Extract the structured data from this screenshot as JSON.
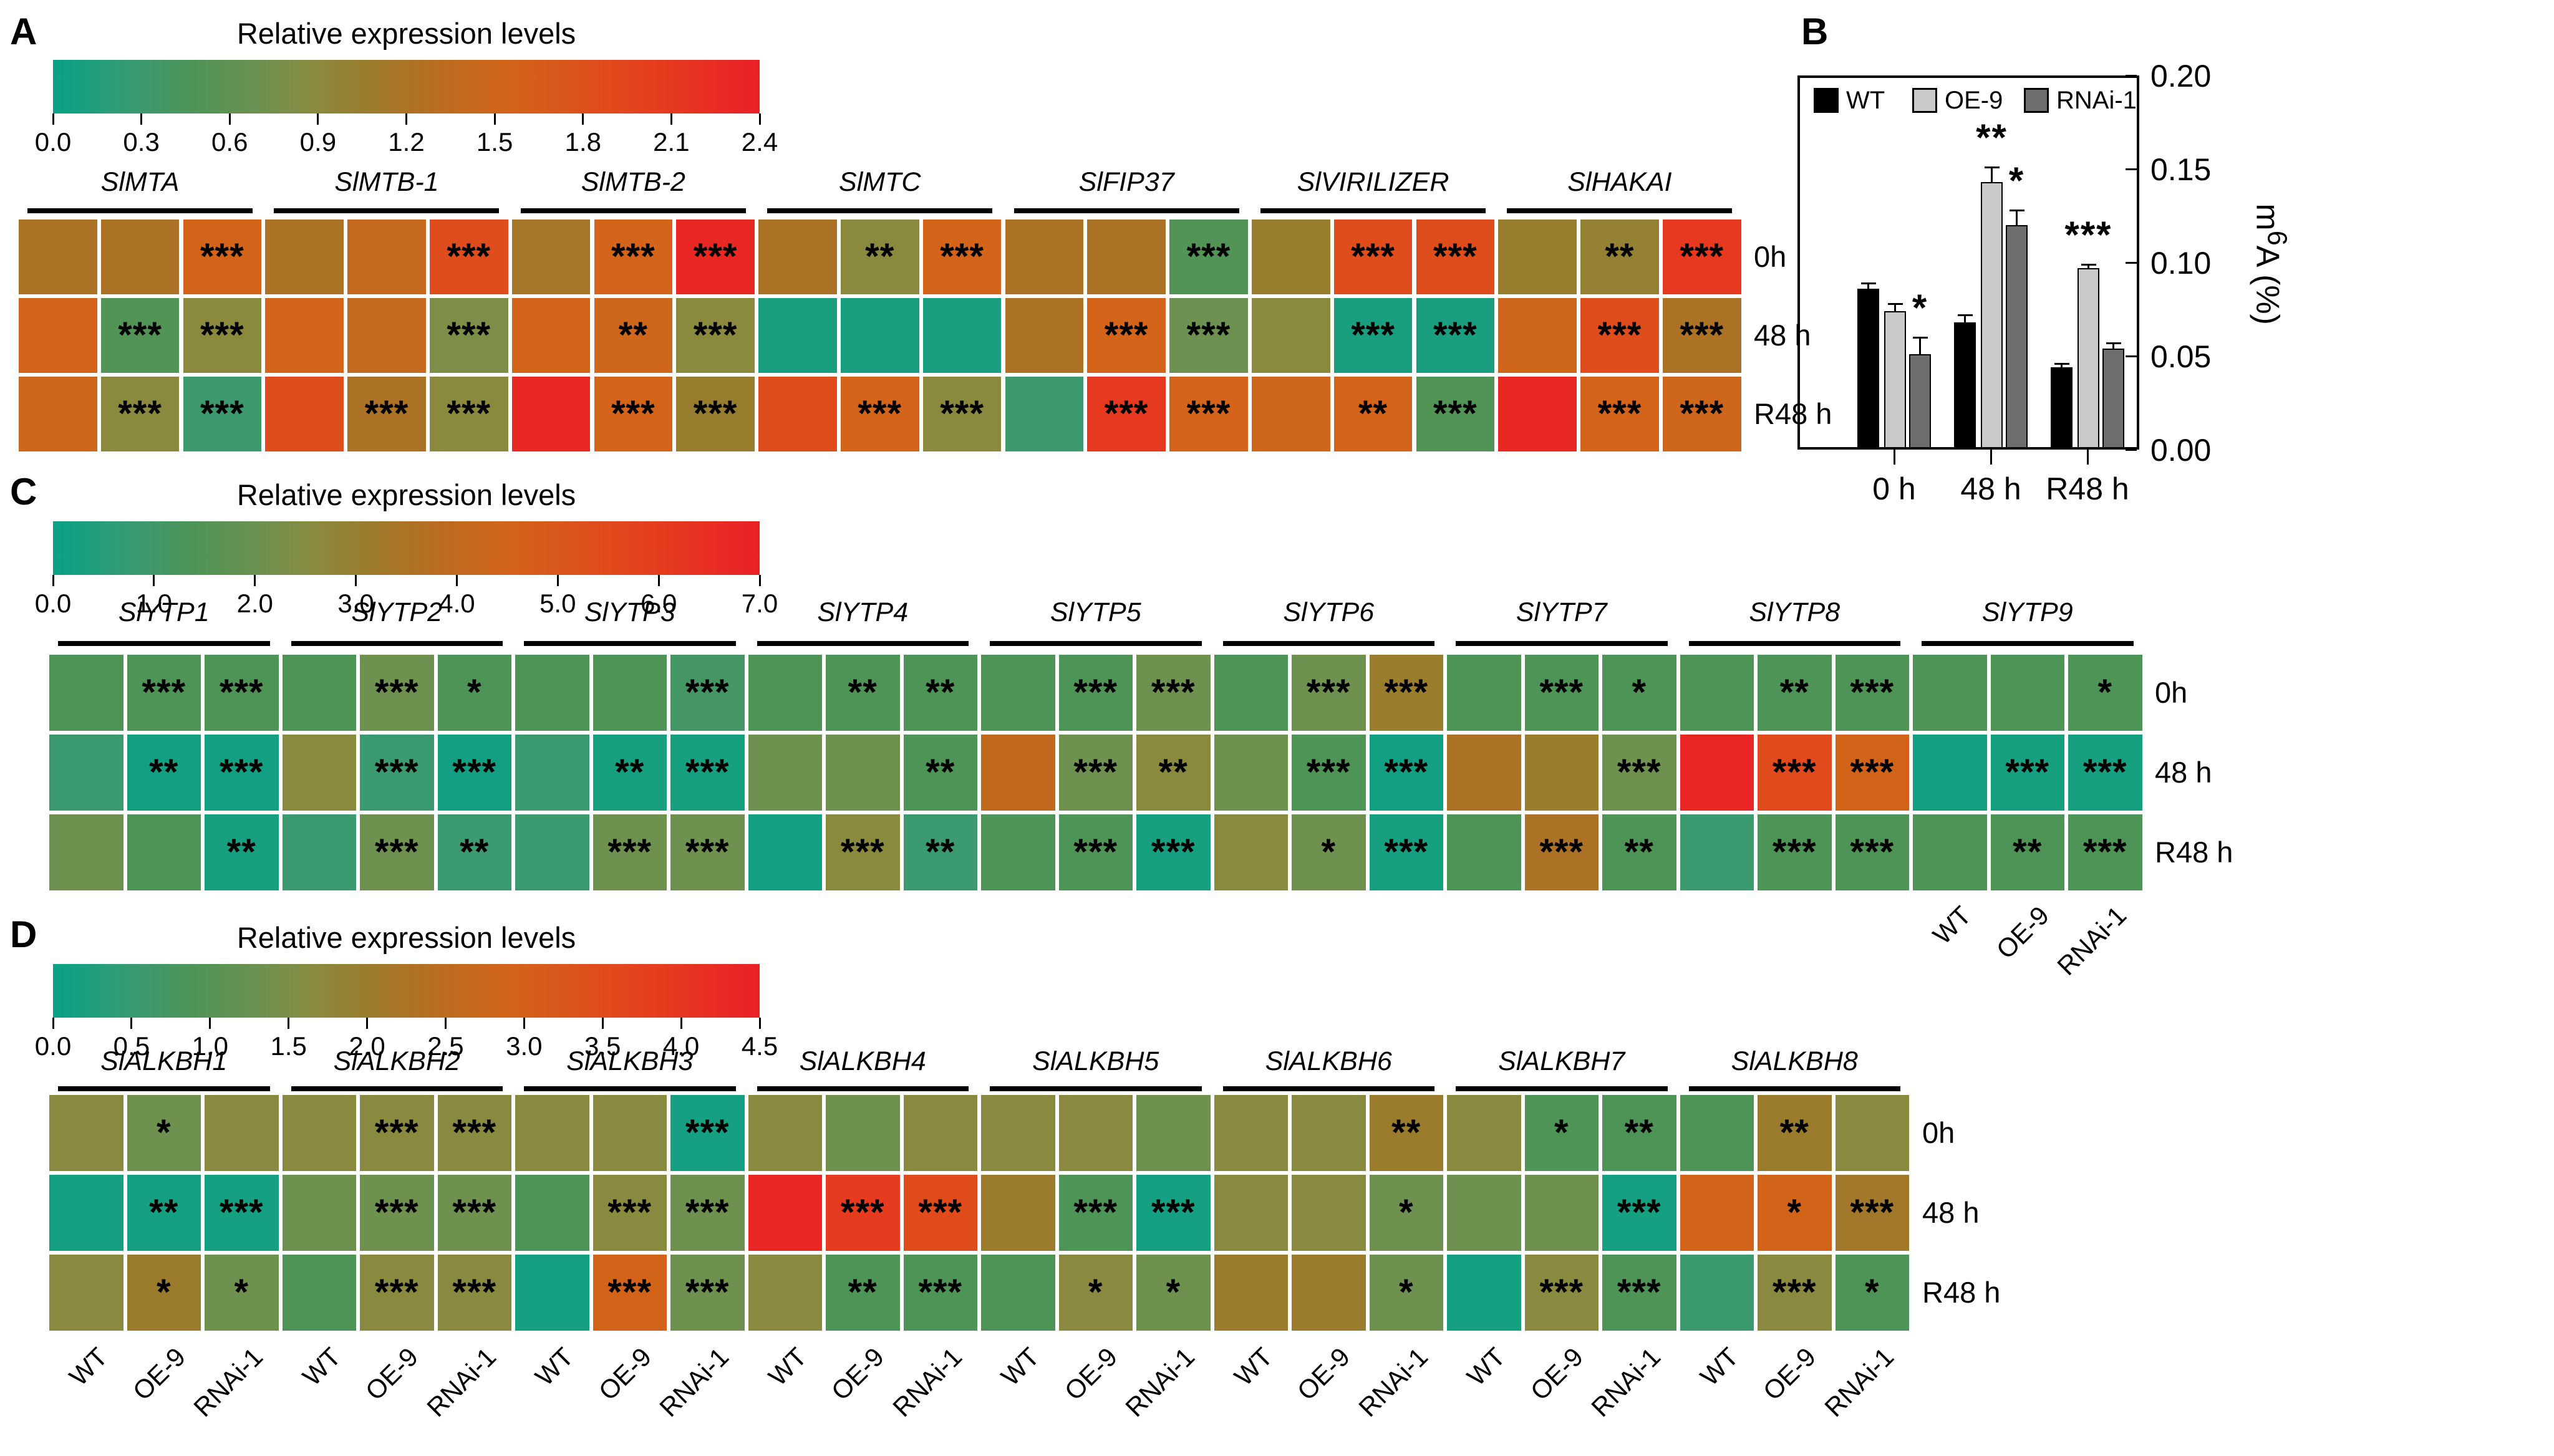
{
  "chart_data": [
    {
      "id": "A",
      "type": "heatmap",
      "panel_letter": "A",
      "title": "Relative expression levels",
      "colorbar_ticks": [
        "0.0",
        "0.3",
        "0.6",
        "0.9",
        "1.2",
        "1.5",
        "1.8",
        "2.1",
        "2.4"
      ],
      "scale_min": 0.0,
      "scale_max": 2.4,
      "genes": [
        "SlMTA",
        "SlMTB-1",
        "SlMTB-2",
        "SlMTC",
        "SlFIP37",
        "SlVIRILIZER",
        "SlHAKAI"
      ],
      "columns_per_gene": [
        "WT",
        "OE-9",
        "RNAi-1"
      ],
      "row_labels": [
        "0h",
        "48 h",
        "R48 h"
      ],
      "values": [
        [
          1.2,
          1.2,
          1.55,
          1.2,
          1.4,
          1.85,
          1.15,
          1.55,
          2.3,
          1.2,
          0.9,
          1.55,
          1.2,
          1.2,
          0.5,
          1.05,
          1.85,
          1.85,
          1.05,
          1.0,
          2.1
        ],
        [
          1.55,
          0.5,
          0.9,
          1.55,
          1.4,
          0.8,
          1.55,
          1.5,
          0.9,
          0.1,
          0.1,
          0.1,
          1.2,
          1.55,
          0.7,
          0.9,
          0.1,
          0.1,
          1.5,
          1.85,
          1.2
        ],
        [
          1.5,
          0.9,
          0.3,
          1.85,
          1.2,
          0.9,
          2.3,
          1.55,
          1.05,
          1.85,
          1.55,
          0.9,
          0.3,
          2.1,
          1.55,
          1.5,
          1.55,
          0.5,
          2.3,
          1.55,
          1.5
        ]
      ],
      "stars": [
        [
          "",
          "",
          "***",
          "",
          "",
          "***",
          "",
          "***",
          "***",
          "",
          "**",
          "***",
          "",
          "",
          "***",
          "",
          "***",
          "***",
          "",
          "**",
          "***"
        ],
        [
          "",
          "***",
          "***",
          "",
          "",
          "***",
          "",
          "**",
          "***",
          "",
          "",
          "",
          "",
          "***",
          "***",
          "",
          "***",
          "***",
          "",
          "***",
          "***"
        ],
        [
          "",
          "***",
          "***",
          "",
          "***",
          "***",
          "",
          "***",
          "***",
          "",
          "***",
          "***",
          "",
          "***",
          "***",
          "",
          "**",
          "***",
          "",
          "***",
          "***"
        ]
      ]
    },
    {
      "id": "B",
      "type": "bar",
      "panel_letter": "B",
      "categories": [
        "0 h",
        "48 h",
        "R48 h"
      ],
      "series": [
        {
          "name": "WT",
          "color": "#000000",
          "values": [
            0.086,
            0.068,
            0.044
          ],
          "errors": [
            0.003,
            0.004,
            0.002
          ],
          "stars": [
            "",
            "",
            ""
          ]
        },
        {
          "name": "OE-9",
          "color": "#c9c9c9",
          "values": [
            0.074,
            0.143,
            0.097
          ],
          "errors": [
            0.004,
            0.008,
            0.002
          ],
          "stars": [
            "",
            "**",
            "***"
          ]
        },
        {
          "name": "RNAi-1",
          "color": "#6e6e6e",
          "values": [
            0.051,
            0.12,
            0.054
          ],
          "errors": [
            0.009,
            0.008,
            0.003
          ],
          "stars": [
            "*",
            "*",
            ""
          ]
        }
      ],
      "ylabel_parts": {
        "pre": "m",
        "sup": "6",
        "post": "A (%)"
      },
      "yticks": [
        "0.00",
        "0.05",
        "0.10",
        "0.15",
        "0.20"
      ],
      "ylim": [
        0.0,
        0.2
      ],
      "legend_position": "top-left-inside",
      "grid": false
    },
    {
      "id": "C",
      "type": "heatmap",
      "panel_letter": "C",
      "title": "Relative expression levels",
      "colorbar_ticks": [
        "0.0",
        "1.0",
        "2.0",
        "3.0",
        "4.0",
        "5.0",
        "6.0",
        "7.0"
      ],
      "scale_min": 0.0,
      "scale_max": 7.0,
      "genes": [
        "SlYTP1",
        "SlYTP2",
        "SlYTP3",
        "SlYTP4",
        "SlYTP5",
        "SlYTP6",
        "SlYTP7",
        "SlYTP8",
        "SlYTP9"
      ],
      "columns_per_gene": [
        "WT",
        "OE-9",
        "RNAi-1"
      ],
      "row_labels": [
        "0h",
        "48 h",
        "R48 h"
      ],
      "bottom_labels": [
        "WT",
        "OE-9",
        "RNAi-1"
      ],
      "bottom_labels_scope": "last-gene-only",
      "values": [
        [
          1.4,
          1.4,
          1.4,
          1.4,
          2.1,
          1.4,
          1.4,
          1.4,
          1.1,
          1.4,
          1.4,
          1.4,
          1.4,
          1.4,
          2.1,
          1.4,
          2.1,
          3.1,
          1.4,
          1.4,
          1.4,
          1.4,
          1.4,
          1.4,
          1.4,
          1.4,
          1.4
        ],
        [
          0.85,
          0.2,
          0.2,
          2.6,
          0.85,
          0.2,
          0.85,
          0.25,
          0.25,
          2.1,
          2.1,
          1.4,
          4.0,
          2.1,
          2.6,
          2.1,
          1.4,
          0.2,
          3.5,
          3.1,
          2.1,
          6.8,
          5.5,
          4.5,
          0.2,
          0.25,
          0.25
        ],
        [
          2.1,
          1.4,
          0.25,
          0.85,
          2.1,
          0.85,
          0.85,
          2.1,
          2.1,
          0.2,
          2.6,
          0.85,
          1.4,
          1.4,
          0.25,
          2.6,
          2.1,
          0.25,
          1.4,
          3.5,
          1.4,
          0.85,
          1.4,
          1.4,
          1.4,
          1.4,
          1.4
        ]
      ],
      "stars": [
        [
          "",
          "***",
          "***",
          "",
          "***",
          "*",
          "",
          "",
          "***",
          "",
          "**",
          "**",
          "",
          "***",
          "***",
          "",
          "***",
          "***",
          "",
          "***",
          "*",
          "",
          "**",
          "***",
          "",
          "",
          "*"
        ],
        [
          "",
          "**",
          "***",
          "",
          "***",
          "***",
          "",
          "**",
          "***",
          "",
          "",
          "**",
          "",
          "***",
          "**",
          "",
          "***",
          "***",
          "",
          "",
          "***",
          "",
          "***",
          "***",
          "",
          "***",
          "***"
        ],
        [
          "",
          "",
          "**",
          "",
          "***",
          "**",
          "",
          "***",
          "***",
          "",
          "***",
          "**",
          "",
          "***",
          "***",
          "",
          "*",
          "***",
          "",
          "***",
          "**",
          "",
          "***",
          "***",
          "",
          "**",
          "***"
        ]
      ]
    },
    {
      "id": "D",
      "type": "heatmap",
      "panel_letter": "D",
      "title": "Relative expression levels",
      "colorbar_ticks": [
        "0.0",
        "0.5",
        "1.0",
        "1.5",
        "2.0",
        "2.5",
        "3.0",
        "3.5",
        "4.0",
        "4.5"
      ],
      "scale_min": 0.0,
      "scale_max": 4.5,
      "genes": [
        "SlALKBH1",
        "SlALKBH2",
        "SlALKBH3",
        "SlALKBH4",
        "SlALKBH5",
        "SlALKBH6",
        "SlALKBH7",
        "SlALKBH8"
      ],
      "columns_per_gene": [
        "WT",
        "OE-9",
        "RNAi-1"
      ],
      "row_labels": [
        "0h",
        "48 h",
        "R48 h"
      ],
      "bottom_labels": [
        "WT",
        "OE-9",
        "RNAi-1"
      ],
      "bottom_labels_scope": "all-genes",
      "values": [
        [
          1.65,
          1.35,
          1.65,
          1.65,
          1.65,
          1.65,
          1.65,
          1.65,
          0.15,
          1.65,
          1.35,
          1.65,
          1.65,
          1.65,
          1.35,
          1.65,
          1.65,
          2.0,
          1.65,
          0.9,
          0.9,
          0.9,
          2.0,
          1.65
        ],
        [
          0.15,
          0.15,
          0.15,
          1.35,
          1.35,
          1.35,
          0.9,
          1.65,
          1.35,
          4.35,
          3.9,
          3.5,
          2.0,
          0.9,
          0.15,
          1.65,
          1.65,
          1.35,
          1.35,
          1.35,
          0.15,
          2.9,
          2.9,
          2.1
        ],
        [
          1.65,
          2.0,
          1.35,
          0.9,
          1.65,
          1.65,
          0.15,
          2.9,
          1.35,
          1.65,
          0.9,
          0.9,
          0.9,
          1.65,
          1.35,
          2.0,
          2.0,
          1.35,
          0.15,
          1.65,
          0.9,
          0.55,
          1.65,
          0.9
        ]
      ],
      "stars": [
        [
          "",
          "*",
          "",
          "",
          "***",
          "***",
          "",
          "",
          "***",
          "",
          "",
          "",
          "",
          "",
          "",
          "",
          "",
          "**",
          "",
          "*",
          "**",
          "",
          "**",
          ""
        ],
        [
          "",
          "**",
          "***",
          "",
          "***",
          "***",
          "",
          "***",
          "***",
          "",
          "***",
          "***",
          "",
          "***",
          "***",
          "",
          "",
          "*",
          "",
          "",
          "***",
          "",
          "*",
          "***"
        ],
        [
          "",
          "*",
          "*",
          "",
          "***",
          "***",
          "",
          "***",
          "***",
          "",
          "**",
          "***",
          "",
          "*",
          "*",
          "",
          "",
          "*",
          "",
          "***",
          "***",
          "",
          "***",
          "*"
        ]
      ]
    }
  ]
}
